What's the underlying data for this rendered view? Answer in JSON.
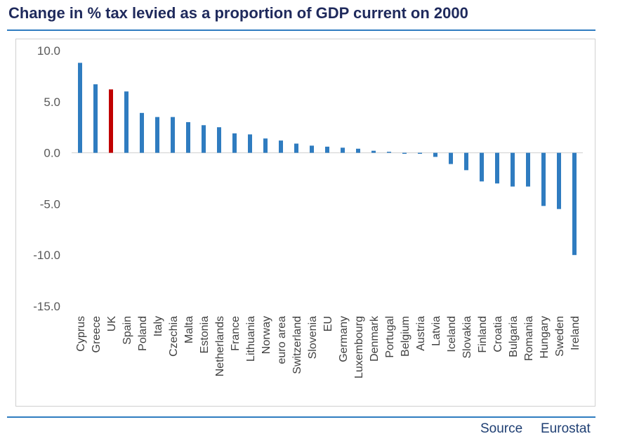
{
  "title": "Change in % tax levied as a proportion of GDP current on 2000",
  "source": {
    "label": "Source",
    "value": "Eurostat"
  },
  "colors": {
    "default_bar": "#2f7cc0",
    "highlight_bar": "#c00000",
    "rule": "#2f7cc0"
  },
  "chart_data": {
    "type": "bar",
    "title": "Change in % tax levied as a proportion of GDP current on 2000",
    "xlabel": "",
    "ylabel": "",
    "ylim": [
      -15,
      10
    ],
    "yticks": [
      "10.0",
      "5.0",
      "0.0",
      "-5.0",
      "-10.0",
      "-15.0"
    ],
    "yticks_values": [
      10,
      5,
      0,
      -5,
      -10,
      -15
    ],
    "grid": false,
    "legend": "none",
    "highlight_category": "UK",
    "categories": [
      "Cyprus",
      "Greece",
      "UK",
      "Spain",
      "Poland",
      "Italy",
      "Czechia",
      "Malta",
      "Estonia",
      "Netherlands",
      "France",
      "Lithuania",
      "Norway",
      "euro area",
      "Switzerland",
      "Slovenia",
      "EU",
      "Germany",
      "Luxembourg",
      "Denmark",
      "Portugal",
      "Belgium",
      "Austria",
      "Latvia",
      "Iceland",
      "Slovakia",
      "Finland",
      "Croatia",
      "Bulgaria",
      "Romania",
      "Hungary",
      "Sweden",
      "Ireland"
    ],
    "values": [
      8.8,
      6.7,
      6.2,
      6.0,
      3.9,
      3.5,
      3.5,
      3.0,
      2.7,
      2.5,
      1.9,
      1.8,
      1.4,
      1.2,
      0.9,
      0.7,
      0.6,
      0.5,
      0.4,
      0.2,
      0.1,
      -0.1,
      -0.1,
      -0.4,
      -1.1,
      -1.7,
      -2.8,
      -3.0,
      -3.3,
      -3.3,
      -5.2,
      -5.5,
      -10.0
    ]
  }
}
